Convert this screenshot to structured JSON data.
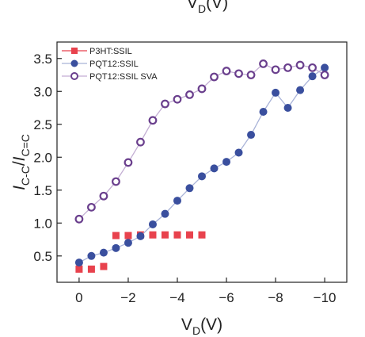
{
  "chart_data": {
    "type": "scatter",
    "top_cut_label": "V_D(V)",
    "xlabel": "V_D(V)",
    "ylabel": "I_C-C/I_C=C",
    "xlim": [
      0.9,
      -10.9
    ],
    "ylim": [
      0.1,
      3.75
    ],
    "xticks": [
      0,
      -2,
      -4,
      -6,
      -8,
      -10
    ],
    "xtick_labels": [
      "0",
      "−2",
      "−4",
      "−6",
      "−8",
      "−10"
    ],
    "yticks": [
      0.5,
      1.0,
      1.5,
      2.0,
      2.5,
      3.0,
      3.5
    ],
    "ytick_labels": [
      "0.5",
      "1.0",
      "1.5",
      "2.0",
      "2.5",
      "3.0",
      "3.5"
    ],
    "grid": false,
    "legend_position": "top-left",
    "series": [
      {
        "name": "P3HT:SSIL",
        "marker": "square",
        "color": "#e8424d",
        "line": false,
        "x": [
          0,
          -0.5,
          -1,
          -1.5,
          -2,
          -2.5,
          -3,
          -3.5,
          -4,
          -4.5,
          -5
        ],
        "y": [
          0.3,
          0.3,
          0.34,
          0.81,
          0.81,
          0.82,
          0.82,
          0.82,
          0.82,
          0.82,
          0.82
        ]
      },
      {
        "name": "PQT12:SSIL",
        "marker": "filled-circle",
        "color": "#3a4f9e",
        "line_color": "#a9b3d8",
        "line": true,
        "x": [
          0,
          -0.5,
          -1,
          -1.5,
          -2,
          -2.5,
          -3,
          -3.5,
          -4,
          -4.5,
          -5,
          -5.5,
          -6,
          -6.5,
          -7,
          -7.5,
          -8,
          -8.5,
          -9,
          -9.5,
          -10
        ],
        "y": [
          0.4,
          0.5,
          0.55,
          0.62,
          0.7,
          0.8,
          0.98,
          1.14,
          1.34,
          1.53,
          1.71,
          1.83,
          1.93,
          2.07,
          2.34,
          2.69,
          2.98,
          2.75,
          3.02,
          3.23,
          3.36
        ]
      },
      {
        "name": "PQT12:SSIL SVA",
        "marker": "open-circle",
        "color": "#6a3f8d",
        "line_color": "#c3aed3",
        "line": true,
        "x": [
          0,
          -0.5,
          -1,
          -1.5,
          -2,
          -2.5,
          -3,
          -3.5,
          -4,
          -4.5,
          -5,
          -5.5,
          -6,
          -6.5,
          -7,
          -7.5,
          -8,
          -8.5,
          -9,
          -9.5,
          -10
        ],
        "y": [
          1.06,
          1.24,
          1.41,
          1.63,
          1.92,
          2.23,
          2.56,
          2.81,
          2.88,
          2.95,
          3.04,
          3.22,
          3.31,
          3.27,
          3.25,
          3.42,
          3.33,
          3.36,
          3.4,
          3.36,
          3.25
        ]
      }
    ]
  }
}
